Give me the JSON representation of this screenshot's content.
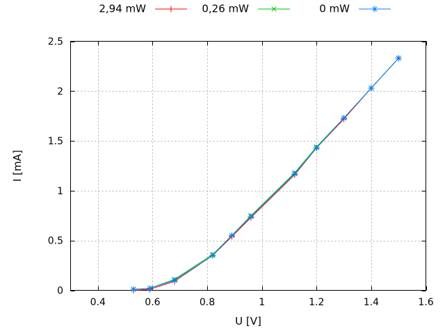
{
  "chart_data": {
    "type": "line",
    "title": "",
    "xlabel": "U [V]",
    "ylabel": "I [mA]",
    "xlim": [
      0.3,
      1.6
    ],
    "ylim": [
      0.0,
      2.5
    ],
    "grid": true,
    "grid_style": "dotted",
    "legend_position": "top-center-row",
    "xtick_values": [
      0.4,
      0.6,
      0.8,
      1.0,
      1.2,
      1.4,
      1.6
    ],
    "xtick_labels": [
      "0.4",
      "0.6",
      "0.8",
      "1",
      "1.2",
      "1.4",
      "1.6"
    ],
    "ytick_values": [
      0.0,
      0.5,
      1.0,
      1.5,
      2.0,
      2.5
    ],
    "ytick_labels": [
      "0",
      "0.5",
      "1",
      "1.5",
      "2",
      "2.5"
    ],
    "x": [
      0.53,
      0.59,
      0.68,
      0.82,
      0.89,
      0.96,
      1.12,
      1.2,
      1.3,
      1.4,
      1.5
    ],
    "series": [
      {
        "name": "2,94 mW",
        "color": "#ff0000",
        "marker": "plus",
        "values": [
          0.0,
          0.01,
          0.09,
          0.35,
          0.54,
          0.73,
          1.16,
          1.43,
          1.72,
          2.03,
          2.33
        ]
      },
      {
        "name": "0,26 mW",
        "color": "#00c000",
        "marker": "cross",
        "values": [
          0.01,
          0.02,
          0.11,
          0.36,
          0.55,
          0.75,
          1.18,
          1.44,
          1.73,
          2.03,
          2.33
        ]
      },
      {
        "name": "0 mW",
        "color": "#0080ff",
        "marker": "star",
        "values": [
          0.01,
          0.02,
          0.1,
          0.35,
          0.55,
          0.74,
          1.17,
          1.43,
          1.73,
          2.03,
          2.33
        ]
      }
    ]
  },
  "colors": {
    "background": "#ffffff",
    "plot_border": "#000000",
    "grid": "#b0b0b0",
    "text": "#000000"
  }
}
